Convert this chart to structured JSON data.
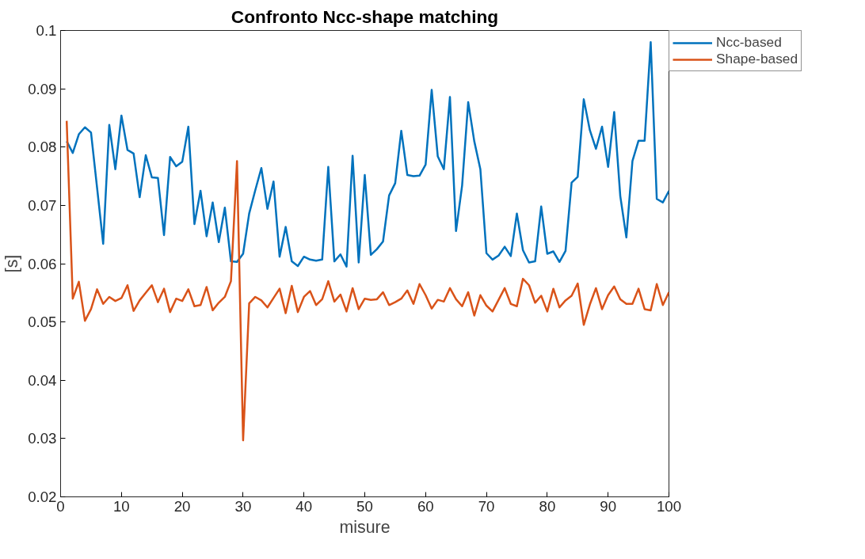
{
  "chart_data": {
    "type": "line",
    "title": "Confronto Ncc-shape matching",
    "xlabel": "misure",
    "ylabel": "[s]",
    "x": [
      1,
      2,
      3,
      4,
      5,
      6,
      7,
      8,
      9,
      10,
      11,
      12,
      13,
      14,
      15,
      16,
      17,
      18,
      19,
      20,
      21,
      22,
      23,
      24,
      25,
      26,
      27,
      28,
      29,
      30,
      31,
      32,
      33,
      34,
      35,
      36,
      37,
      38,
      39,
      40,
      41,
      42,
      43,
      44,
      45,
      46,
      47,
      48,
      49,
      50,
      51,
      52,
      53,
      54,
      55,
      56,
      57,
      58,
      59,
      60,
      61,
      62,
      63,
      64,
      65,
      66,
      67,
      68,
      69,
      70,
      71,
      72,
      73,
      74,
      75,
      76,
      77,
      78,
      79,
      80,
      81,
      82,
      83,
      84,
      85,
      86,
      87,
      88,
      89,
      90,
      91,
      92,
      93,
      94,
      95,
      96,
      97,
      98,
      99,
      100
    ],
    "series": [
      {
        "name": "Ncc-based",
        "color": "#0072bd",
        "values": [
          0.081,
          0.079,
          0.0822,
          0.0834,
          0.0825,
          0.073,
          0.0634,
          0.0838,
          0.0762,
          0.0854,
          0.0795,
          0.0789,
          0.0714,
          0.0786,
          0.0748,
          0.0747,
          0.0649,
          0.0783,
          0.0767,
          0.0775,
          0.0835,
          0.0668,
          0.0725,
          0.0647,
          0.0705,
          0.0637,
          0.0696,
          0.0604,
          0.0603,
          0.0617,
          0.0686,
          0.0726,
          0.0764,
          0.0694,
          0.0741,
          0.0612,
          0.0663,
          0.0604,
          0.0596,
          0.0612,
          0.0607,
          0.0605,
          0.0607,
          0.0766,
          0.0604,
          0.0616,
          0.0595,
          0.0785,
          0.0602,
          0.0752,
          0.0615,
          0.0625,
          0.0638,
          0.0717,
          0.0738,
          0.0828,
          0.0752,
          0.075,
          0.0751,
          0.077,
          0.0898,
          0.0784,
          0.0762,
          0.0886,
          0.0656,
          0.0734,
          0.0877,
          0.081,
          0.0762,
          0.0618,
          0.0607,
          0.0614,
          0.0629,
          0.0613,
          0.0686,
          0.0623,
          0.0602,
          0.0604,
          0.0698,
          0.0617,
          0.0621,
          0.0603,
          0.0622,
          0.0739,
          0.0749,
          0.0882,
          0.0829,
          0.0797,
          0.0835,
          0.0766,
          0.086,
          0.0716,
          0.0645,
          0.0776,
          0.0811,
          0.0811,
          0.098,
          0.0711,
          0.0705,
          0.0725
        ]
      },
      {
        "name": "Shape-based",
        "color": "#d95319",
        "values": [
          0.0845,
          0.054,
          0.0569,
          0.0502,
          0.0522,
          0.0556,
          0.0531,
          0.0543,
          0.0536,
          0.0541,
          0.0563,
          0.0519,
          0.0537,
          0.055,
          0.0563,
          0.0534,
          0.0557,
          0.0517,
          0.054,
          0.0536,
          0.0556,
          0.0527,
          0.0529,
          0.056,
          0.052,
          0.0533,
          0.0543,
          0.057,
          0.0776,
          0.0297,
          0.0532,
          0.0543,
          0.0537,
          0.0525,
          0.0541,
          0.0557,
          0.0515,
          0.0562,
          0.0517,
          0.0543,
          0.0553,
          0.0529,
          0.0539,
          0.057,
          0.0535,
          0.0547,
          0.0518,
          0.0558,
          0.0522,
          0.054,
          0.0538,
          0.0539,
          0.0551,
          0.0529,
          0.0534,
          0.054,
          0.0554,
          0.0531,
          0.0565,
          0.0546,
          0.0523,
          0.0538,
          0.0535,
          0.0558,
          0.0539,
          0.0527,
          0.0551,
          0.0511,
          0.0546,
          0.0528,
          0.0518,
          0.0538,
          0.0558,
          0.0531,
          0.0527,
          0.0574,
          0.0563,
          0.0533,
          0.0545,
          0.0518,
          0.0557,
          0.0525,
          0.0537,
          0.0545,
          0.0566,
          0.0495,
          0.053,
          0.0558,
          0.0522,
          0.0546,
          0.0561,
          0.0539,
          0.0531,
          0.0531,
          0.0557,
          0.0522,
          0.052,
          0.0565,
          0.0529,
          0.0551
        ]
      }
    ],
    "xlim": [
      0,
      100
    ],
    "xticks": [
      0,
      10,
      20,
      30,
      40,
      50,
      60,
      70,
      80,
      90,
      100
    ],
    "ylim": [
      0.02,
      0.1
    ],
    "yticks": [
      0.02,
      0.03,
      0.04,
      0.05,
      0.06,
      0.07,
      0.08,
      0.09,
      0.1
    ],
    "grid": false,
    "legend": "top right",
    "marker": "none",
    "line_style": "solid"
  }
}
